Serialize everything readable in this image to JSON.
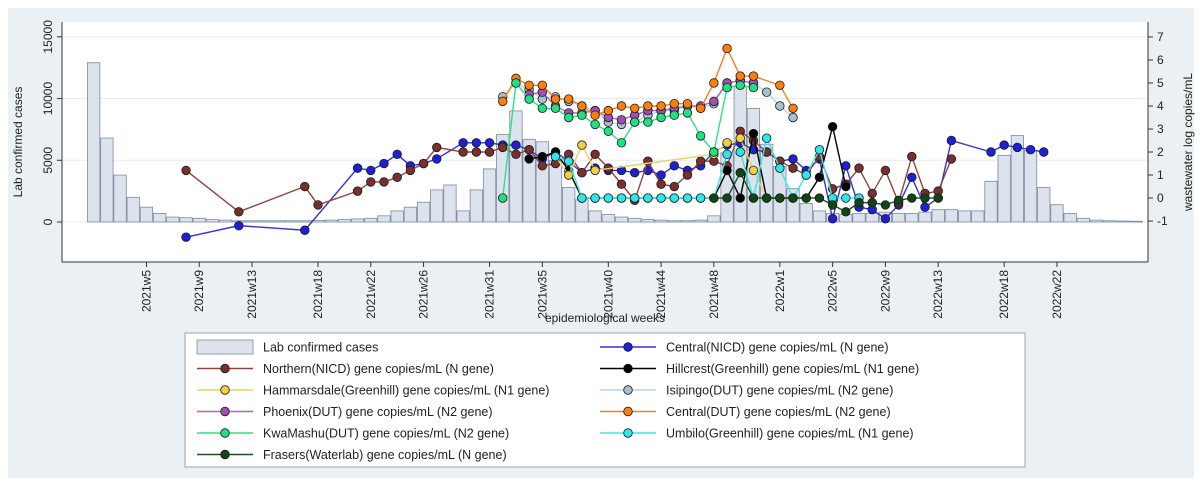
{
  "chart_data": {
    "type": "combo",
    "x_label": "epidemiological weeks",
    "y_label": "Lab confirmed cases",
    "y2_label": "wastewater log copies/mL",
    "xlim": [
      -1.4,
      80.9
    ],
    "ylim": [
      -3240,
      16200
    ],
    "y2lim": [
      -2.78,
      7.65
    ],
    "yticks": [
      0,
      5000,
      10000,
      15000
    ],
    "y2ticks": [
      -1,
      0,
      1,
      2,
      3,
      4,
      5,
      6,
      7
    ],
    "xticks": [
      {
        "value": 5,
        "label": "2021w5"
      },
      {
        "value": 9,
        "label": "2021w9"
      },
      {
        "value": 13,
        "label": "2021w13"
      },
      {
        "value": 18,
        "label": "2021w18"
      },
      {
        "value": 22,
        "label": "2021w22"
      },
      {
        "value": 26,
        "label": "2021w26"
      },
      {
        "value": 31,
        "label": "2021w31"
      },
      {
        "value": 35,
        "label": "2021w35"
      },
      {
        "value": 40,
        "label": "2021w40"
      },
      {
        "value": 44,
        "label": "2021w44"
      },
      {
        "value": 48,
        "label": "2021w48"
      },
      {
        "value": 53,
        "label": "2022w1"
      },
      {
        "value": 57,
        "label": "2022w5"
      },
      {
        "value": 61,
        "label": "2022w9"
      },
      {
        "value": 65,
        "label": "2022w13"
      },
      {
        "value": 70,
        "label": "2022w18"
      },
      {
        "value": 74,
        "label": "2022w22"
      }
    ],
    "grid": true,
    "series": [
      {
        "name": "Lab confirmed cases",
        "type": "bar",
        "color": "#dde3ed",
        "edge": "#7b8aa2",
        "x": [
          1,
          2,
          3,
          4,
          5,
          6,
          7,
          8,
          9,
          10,
          11,
          12,
          13,
          14,
          15,
          16,
          17,
          18,
          19,
          20,
          21,
          22,
          23,
          24,
          25,
          26,
          27,
          28,
          29,
          30,
          31,
          32,
          33,
          34,
          35,
          36,
          37,
          38,
          39,
          40,
          41,
          42,
          43,
          44,
          45,
          46,
          47,
          48,
          49,
          50,
          51,
          52,
          53,
          54,
          55,
          56,
          57,
          58,
          59,
          60,
          61,
          62,
          63,
          64,
          65,
          66,
          67,
          68,
          69,
          70,
          71,
          72,
          73,
          74,
          75,
          76,
          77,
          78,
          79,
          80
        ],
        "values": [
          12900,
          6800,
          3800,
          2000,
          1200,
          700,
          400,
          350,
          300,
          200,
          150,
          100,
          100,
          100,
          100,
          100,
          100,
          120,
          150,
          200,
          250,
          300,
          500,
          900,
          1200,
          1600,
          2600,
          3000,
          900,
          2600,
          4300,
          7100,
          9000,
          6700,
          6500,
          5000,
          2800,
          1800,
          900,
          600,
          400,
          300,
          200,
          150,
          100,
          100,
          150,
          500,
          5600,
          11000,
          9200,
          6300,
          4500,
          2700,
          1500,
          900,
          700,
          600,
          700,
          700,
          800,
          700,
          700,
          800,
          1000,
          1000,
          900,
          900,
          3300,
          5400,
          7000,
          5800,
          2800,
          1400,
          700,
          300,
          150,
          100,
          80,
          60
        ]
      },
      {
        "name": "Central(NICD) gene copies/mL (N gene)",
        "type": "line",
        "axis": "y2",
        "color": "#3535d0",
        "marker": "#1f1fd4",
        "x": [
          8,
          12,
          17,
          21,
          22,
          23,
          24,
          25,
          26,
          27,
          29,
          30,
          31,
          32,
          33,
          34,
          35,
          36,
          37,
          38,
          39,
          40,
          41,
          42,
          43,
          44,
          45,
          46,
          47,
          48,
          49,
          50,
          51,
          52,
          53,
          54,
          55,
          56,
          57,
          58,
          59,
          60,
          61,
          62,
          63,
          64,
          65,
          66,
          69,
          70,
          71,
          72,
          73
        ],
        "values": [
          -1.7,
          -1.2,
          -1.4,
          1.3,
          1.2,
          1.5,
          1.9,
          1.4,
          1.5,
          1.7,
          2.4,
          2.4,
          2.4,
          2.3,
          2.3,
          2.1,
          1.7,
          2.0,
          1.6,
          1.1,
          1.3,
          1.2,
          1.2,
          1.1,
          1.2,
          1.0,
          1.4,
          1.2,
          1.4,
          2.0,
          2.3,
          2.4,
          2.1,
          2.0,
          1.6,
          1.7,
          1.2,
          1.7,
          -0.9,
          1.4,
          -0.4,
          -0.5,
          -0.9,
          -0.3,
          0.9,
          -0.4,
          0.0,
          2.5,
          2.0,
          2.3,
          2.2,
          2.1,
          2.0
        ]
      },
      {
        "name": "Northern(NICD) gene copies/mL (N gene)",
        "type": "line",
        "axis": "y2",
        "color": "#8c4545",
        "marker": "#7a2f2f",
        "x": [
          8,
          12,
          17,
          18,
          21,
          22,
          23,
          24,
          25,
          26,
          27,
          29,
          30,
          31,
          32,
          33,
          34,
          35,
          36,
          37,
          38,
          39,
          40,
          41,
          42,
          43,
          44,
          45,
          46,
          47,
          48,
          49,
          50,
          51,
          52,
          53,
          54,
          55,
          56,
          57,
          58,
          59,
          60,
          61,
          62,
          63,
          64,
          65,
          66
        ],
        "values": [
          1.2,
          -0.6,
          0.5,
          -0.3,
          0.3,
          0.7,
          0.7,
          0.9,
          1.2,
          1.5,
          2.2,
          2.0,
          2.0,
          2.0,
          2.2,
          1.9,
          2.1,
          1.4,
          1.5,
          1.9,
          1.1,
          1.9,
          1.3,
          0.6,
          -0.1,
          1.6,
          0.6,
          0.5,
          1.0,
          1.6,
          1.6,
          1.4,
          2.9,
          2.5,
          2.0,
          1.6,
          1.3,
          1.0,
          1.8,
          0.4,
          0.6,
          1.3,
          0.2,
          1.2,
          -0.2,
          1.8,
          0.2,
          0.3,
          1.7
        ]
      },
      {
        "name": "Hillcrest(Greenhill) gene copies/mL (N1 gene)",
        "type": "line",
        "axis": "y2",
        "color": "#000000",
        "marker": "#000000",
        "x": [
          34,
          35,
          36,
          37,
          38,
          39,
          40,
          41,
          42,
          43,
          44,
          45,
          46,
          47,
          48,
          49,
          50,
          51,
          52,
          53,
          54,
          55,
          56,
          57,
          58
        ],
        "values": [
          1.7,
          1.8,
          2.0,
          1.2,
          0,
          0,
          0,
          0,
          0,
          0,
          0,
          0,
          0,
          0,
          0,
          1.2,
          0,
          2.8,
          0,
          0,
          0,
          0,
          0.9,
          3.1,
          0.5
        ]
      },
      {
        "name": "Hammarsdale(Greenhill) gene copies/mL (N1 gene)",
        "type": "line",
        "axis": "y2",
        "color": "#e6d36a",
        "marker": "#f0d040",
        "x": [
          36,
          37,
          38,
          39,
          48,
          49,
          50,
          51,
          52
        ],
        "values": [
          1.8,
          1.0,
          2.3,
          1.2,
          1.9,
          2.4,
          2.6,
          1.2,
          0
        ]
      },
      {
        "name": "Isipingo(DUT) gene copies/mL (N2 gene)",
        "type": "line",
        "axis": "y2",
        "color": "#b9d6e4",
        "marker": "#a7c2cf",
        "x": [
          32,
          33,
          34,
          35,
          36,
          37,
          38,
          39,
          40,
          41,
          42,
          43,
          44,
          45,
          46,
          47,
          48,
          49,
          50,
          51,
          52,
          53,
          54
        ],
        "values": [
          4.4,
          5.0,
          4.7,
          4.3,
          4.4,
          4.2,
          4.0,
          3.8,
          3.3,
          3.2,
          3.3,
          3.6,
          3.8,
          3.8,
          4.0,
          3.9,
          4.1,
          5.0,
          5.1,
          5.0,
          4.6,
          4.0,
          3.5
        ]
      },
      {
        "name": "Phoenix(DUT) gene copies/mL (N2 gene)",
        "type": "line",
        "axis": "y2",
        "color": "#b066c0",
        "marker": "#a24fb2",
        "x": [
          34,
          35,
          36,
          37,
          38,
          39,
          40,
          41,
          42,
          43,
          44,
          45,
          46,
          47,
          48,
          49,
          50,
          51
        ],
        "values": [
          4.5,
          4.6,
          4.0,
          3.7,
          3.7,
          3.8,
          3.5,
          3.4,
          3.6,
          3.8,
          3.8,
          3.9,
          4.0,
          4.0,
          4.2,
          5.0,
          5.1,
          5.0
        ]
      },
      {
        "name": "Central(DUT) gene copies/mL (N2 gene)",
        "type": "line",
        "axis": "y2",
        "color": "#f08224",
        "marker": "#ff7f0e",
        "x": [
          32,
          33,
          34,
          35,
          36,
          37,
          38,
          39,
          40,
          41,
          42,
          43,
          44,
          45,
          46,
          47,
          48,
          49,
          50,
          51,
          53,
          54
        ],
        "values": [
          4.2,
          5.2,
          4.9,
          4.9,
          4.3,
          4.3,
          4.0,
          3.6,
          3.8,
          4.0,
          3.9,
          4.0,
          4.0,
          4.1,
          4.1,
          3.9,
          5.0,
          6.5,
          5.3,
          5.3,
          4.9,
          3.9
        ]
      },
      {
        "name": "KwaMashu(DUT) gene copies/mL (N2 gene)",
        "type": "line",
        "axis": "y2",
        "color": "#2ee087",
        "marker": "#22e07f",
        "x": [
          32,
          33,
          34,
          35,
          36,
          37,
          38,
          39,
          40,
          41,
          42,
          43,
          44,
          45,
          46,
          47,
          48,
          49,
          50,
          51
        ],
        "values": [
          0,
          5.0,
          4.3,
          3.9,
          3.9,
          3.5,
          3.6,
          3.2,
          2.9,
          2.4,
          3.3,
          3.3,
          3.5,
          3.6,
          3.7,
          2.7,
          2.0,
          4.8,
          4.9,
          4.8
        ]
      },
      {
        "name": "Umbilo(Greenhill) gene copies/mL (N1 gene)",
        "type": "line",
        "axis": "y2",
        "color": "#38e8e8",
        "marker": "#2ee6ec",
        "x": [
          36,
          37,
          38,
          39,
          40,
          41,
          42,
          43,
          44,
          45,
          46,
          47,
          48,
          49,
          50,
          51,
          52,
          53,
          54,
          55,
          56,
          57,
          58,
          59
        ],
        "values": [
          1.8,
          1.6,
          0,
          0,
          0,
          0,
          0,
          0,
          0,
          0,
          0,
          0,
          0,
          1.9,
          2.0,
          0,
          2.6,
          1.3,
          0,
          1.0,
          2.1,
          0,
          0,
          0
        ]
      },
      {
        "name": "Frasers(Waterlab) gene copies/mL (N gene)",
        "type": "line",
        "axis": "y2",
        "color": "#1a4d1f",
        "marker": "#0f4614",
        "x": [
          48,
          49,
          50,
          51,
          52,
          53,
          54,
          55,
          56,
          57,
          58,
          59,
          60,
          61,
          62,
          63,
          64,
          65
        ],
        "values": [
          0,
          0,
          1.1,
          0,
          0,
          0,
          0,
          0,
          0,
          -0.3,
          -0.6,
          -0.2,
          -0.2,
          -0.3,
          -0.1,
          0,
          0,
          0
        ]
      }
    ]
  }
}
